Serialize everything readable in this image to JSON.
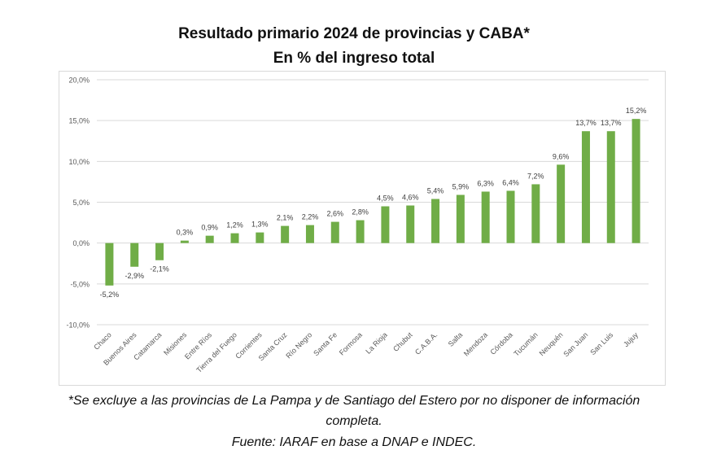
{
  "chart_data": {
    "type": "bar",
    "title": "Resultado primario 2024 de provincias y CABA*",
    "subtitle": "En % del ingreso total",
    "xlabel": "",
    "ylabel": "",
    "ylim": [
      -10,
      20
    ],
    "yticks": [
      20,
      15,
      10,
      5,
      0,
      -5,
      -10
    ],
    "ytick_labels": [
      "20,0%",
      "15,0%",
      "10,0%",
      "5,0%",
      "0,0%",
      "-5,0%",
      "-10,0%"
    ],
    "grid": true,
    "legend": "none",
    "bar_color": "#70ad47",
    "categories": [
      "Chaco",
      "Buenos Aires",
      "Catamarca",
      "Misiones",
      "Entre Ríos",
      "Tierra del Fuego",
      "Corrientes",
      "Santa Cruz",
      "Río Negro",
      "Santa Fe",
      "Formosa",
      "La Rioja",
      "Chubut",
      "C.A.B.A.",
      "Salta",
      "Mendoza",
      "Córdoba",
      "Tucumán",
      "Neuquén",
      "San Juan",
      "San Luis",
      "Jujuy"
    ],
    "values": [
      -5.2,
      -2.9,
      -2.1,
      0.3,
      0.9,
      1.2,
      1.3,
      2.1,
      2.2,
      2.6,
      2.8,
      4.5,
      4.6,
      5.4,
      5.9,
      6.3,
      6.4,
      7.2,
      9.6,
      13.7,
      13.7,
      15.2
    ],
    "data_labels": [
      "-5,2%",
      "-2,9%",
      "-2,1%",
      "0,3%",
      "0,9%",
      "1,2%",
      "1,3%",
      "2,1%",
      "2,2%",
      "2,6%",
      "2,8%",
      "4,5%",
      "4,6%",
      "5,4%",
      "5,9%",
      "6,3%",
      "6,4%",
      "7,2%",
      "9,6%",
      "13,7%",
      "13,7%",
      "15,2%"
    ]
  },
  "footer": {
    "note_line1": "*Se excluye a las provincias de La Pampa y de Santiago del Estero por no disponer de información",
    "note_line2": "completa.",
    "source": "Fuente: IARAF en base a DNAP e INDEC."
  }
}
